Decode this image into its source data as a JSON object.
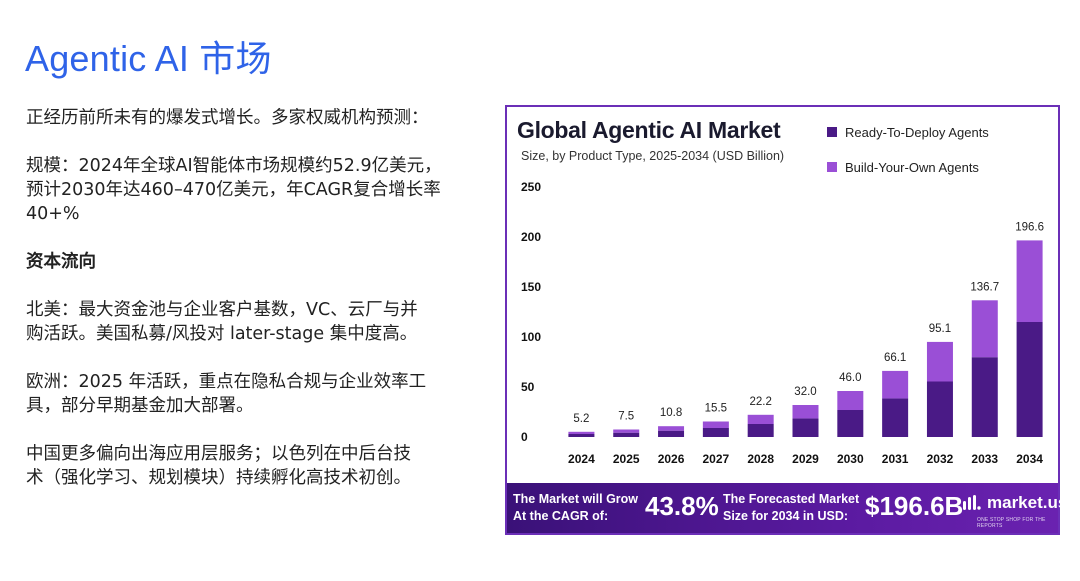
{
  "page": {
    "title": "Agentic AI 市场"
  },
  "left": {
    "intro": "正经历前所未有的爆发式增长。多家权威机构预测：",
    "scale_line1": "规模：2024年全球AI智能体市场规模约52.9亿美元，",
    "scale_line2": "预计2030年达460–470亿美元，年CAGR复合增长率",
    "scale_line3": "40+%",
    "capital_heading": "资本流向",
    "na_line1": "北美：最大资金池与企业客户基数，VC、云厂与并",
    "na_line2": "购活跃。美国私募/风投对 later-stage 集中度高。",
    "eu_line1": "欧洲：2025 年活跃，重点在隐私合规与企业效率工",
    "eu_line2": "具，部分早期基金加大部署。",
    "cn_line1": "中国更多偏向出海应用层服务；以色列在中后台技",
    "cn_line2": "术（强化学习、规划模块）持续孵化高技术初创。"
  },
  "chart_data": {
    "type": "bar",
    "stacked": true,
    "title": "Global Agentic AI Market",
    "subtitle": "Size, by Product Type, 2025-2034 (USD Billion)",
    "categories": [
      "2024",
      "2025",
      "2026",
      "2027",
      "2028",
      "2029",
      "2030",
      "2031",
      "2032",
      "2033",
      "2034"
    ],
    "totals": [
      5.2,
      7.5,
      10.8,
      15.5,
      22.2,
      32.0,
      46.0,
      66.1,
      95.1,
      136.7,
      196.6
    ],
    "total_labels": [
      "5.2",
      "7.5",
      "10.8",
      "15.5",
      "22.2",
      "32.0",
      "46.0",
      "66.1",
      "95.1",
      "136.7",
      "196.6"
    ],
    "series": [
      {
        "name": "Ready-To-Deploy Agents",
        "color": "#4a1a86",
        "values": [
          3.0,
          4.3,
          6.3,
          9.0,
          13.0,
          18.6,
          27.0,
          38.6,
          55.5,
          79.8,
          115.0
        ]
      },
      {
        "name": "Build-Your-Own Agents",
        "color": "#9a4fd6",
        "values": [
          2.2,
          3.2,
          4.5,
          6.5,
          9.2,
          13.4,
          19.0,
          27.5,
          39.6,
          56.9,
          81.6
        ]
      }
    ],
    "yticks": [
      "0",
      "50",
      "100",
      "150",
      "200",
      "250"
    ],
    "ylim": [
      0,
      250
    ],
    "grid": false,
    "legend_position": "top-right"
  },
  "banner": {
    "cagr_label": "The Market will Grow At the CAGR of:",
    "cagr_value": "43.8%",
    "forecast_label": "The Forecasted Market Size for 2034 in USD:",
    "forecast_value": "$196.6B",
    "brand": "market.us",
    "tagline": "ONE STOP SHOP FOR THE REPORTS"
  }
}
